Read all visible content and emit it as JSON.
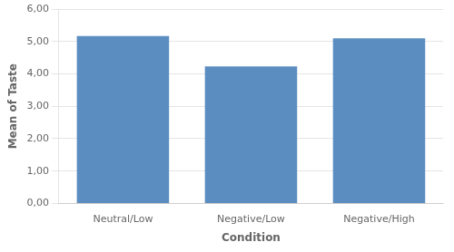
{
  "chart_data": {
    "type": "bar",
    "categories": [
      "Neutral/Low",
      "Negative/Low",
      "Negative/High"
    ],
    "values": [
      5.17,
      4.23,
      5.1
    ],
    "color": "#5b8dc0",
    "xlabel": "Condition",
    "ylabel": "Mean of Taste",
    "ylim": [
      0,
      6.0
    ],
    "yticks": [
      {
        "value": 0.0,
        "label": "0,00"
      },
      {
        "value": 1.0,
        "label": "1,00"
      },
      {
        "value": 2.0,
        "label": "2,00"
      },
      {
        "value": 3.0,
        "label": "3,00"
      },
      {
        "value": 4.0,
        "label": "4,00"
      },
      {
        "value": 5.0,
        "label": "5,00"
      },
      {
        "value": 6.0,
        "label": "6,00"
      }
    ],
    "grid": true
  }
}
